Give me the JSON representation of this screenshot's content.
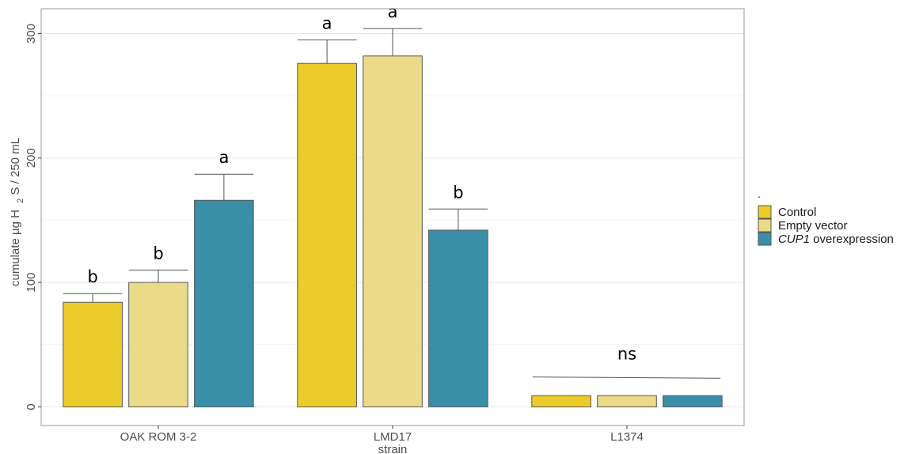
{
  "chart_data": {
    "type": "bar",
    "categories": [
      "OAK ROM 3-2",
      "LMD17",
      "L1374"
    ],
    "xlabel": "strain",
    "ylabel_parts": [
      "cumulate µg H",
      "2",
      "S / 250 mL"
    ],
    "ylim": [
      -15,
      320
    ],
    "yticks": [
      0,
      100,
      200,
      300
    ],
    "grid": true,
    "legend": {
      "title": ".",
      "placement": "right",
      "entries": [
        {
          "label": "Control",
          "italic_prefix": "",
          "color": "#EBCC2A"
        },
        {
          "label": "Empty vector",
          "italic_prefix": "",
          "color": "#EBDA88"
        },
        {
          "label": " overexpression",
          "italic_prefix": "CUP1",
          "color": "#3A8FA8"
        }
      ]
    },
    "series": [
      {
        "name": "Control",
        "color": "#EBCC2A",
        "values": [
          84,
          276,
          9
        ],
        "errors": [
          7,
          19,
          null
        ],
        "labels": [
          "b",
          "a",
          ""
        ]
      },
      {
        "name": "Empty vector",
        "color": "#EBDA88",
        "values": [
          100,
          282,
          9
        ],
        "errors": [
          10,
          22,
          null
        ],
        "labels": [
          "b",
          "a",
          ""
        ]
      },
      {
        "name": "CUP1 overexpression",
        "color": "#3A8FA8",
        "values": [
          166,
          142,
          9
        ],
        "errors": [
          21,
          17,
          null
        ],
        "labels": [
          "a",
          "b",
          ""
        ]
      }
    ],
    "group_annotation": {
      "category": "L1374",
      "label": "ns",
      "line_y": [
        24,
        23
      ]
    }
  }
}
